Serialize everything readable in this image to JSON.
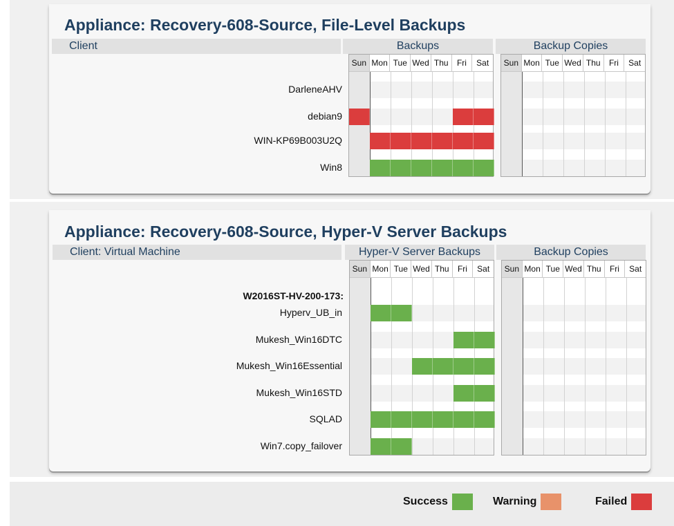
{
  "colors": {
    "success": "#6ab04c",
    "warning": "#e8926a",
    "failed": "#db3d3d",
    "title": "#1f3f5f"
  },
  "days": [
    "Sun",
    "Mon",
    "Tue",
    "Wed",
    "Thu",
    "Fri",
    "Sat"
  ],
  "panel1": {
    "title": "Appliance: Recovery-608-Source, File-Level Backups",
    "client_header": "Client",
    "backups_header": "Backups",
    "copies_header": "Backup Copies",
    "rows": [
      {
        "label": "DarleneAHV",
        "status": [
          "",
          "",
          "",
          "",
          "",
          "",
          ""
        ]
      },
      {
        "label": "debian9",
        "status": [
          "failed",
          "",
          "",
          "",
          "",
          "failed",
          "failed"
        ]
      },
      {
        "label": "WIN-KP69B003U2Q",
        "status": [
          "",
          "failed",
          "failed",
          "failed",
          "failed",
          "failed",
          "failed"
        ]
      },
      {
        "label": "Win8",
        "status": [
          "",
          "success",
          "success",
          "success",
          "success",
          "success",
          "success"
        ]
      }
    ]
  },
  "panel2": {
    "title": "Appliance: Recovery-608-Source, Hyper-V Server Backups",
    "client_header": "Client: Virtual Machine",
    "backups_header": "Hyper-V Server Backups",
    "copies_header": "Backup Copies",
    "group_label": "W2016ST-HV-200-173:",
    "rows": [
      {
        "label": "Hyperv_UB_in",
        "status": [
          "",
          "success",
          "success",
          "",
          "",
          "",
          ""
        ]
      },
      {
        "label": "Mukesh_Win16DTC",
        "status": [
          "",
          "",
          "",
          "",
          "",
          "success",
          "success"
        ]
      },
      {
        "label": "Mukesh_Win16Essential",
        "status": [
          "",
          "",
          "",
          "success",
          "success",
          "success",
          "success"
        ]
      },
      {
        "label": "Mukesh_Win16STD",
        "status": [
          "",
          "",
          "",
          "",
          "",
          "success",
          "success"
        ]
      },
      {
        "label": "SQLAD",
        "status": [
          "",
          "success",
          "success",
          "success",
          "success",
          "success",
          "success"
        ]
      },
      {
        "label": "Win7.copy_failover",
        "status": [
          "",
          "success",
          "success",
          "",
          "",
          "",
          ""
        ]
      }
    ]
  },
  "legend": {
    "success": "Success",
    "warning": "Warning",
    "failed": "Failed"
  }
}
